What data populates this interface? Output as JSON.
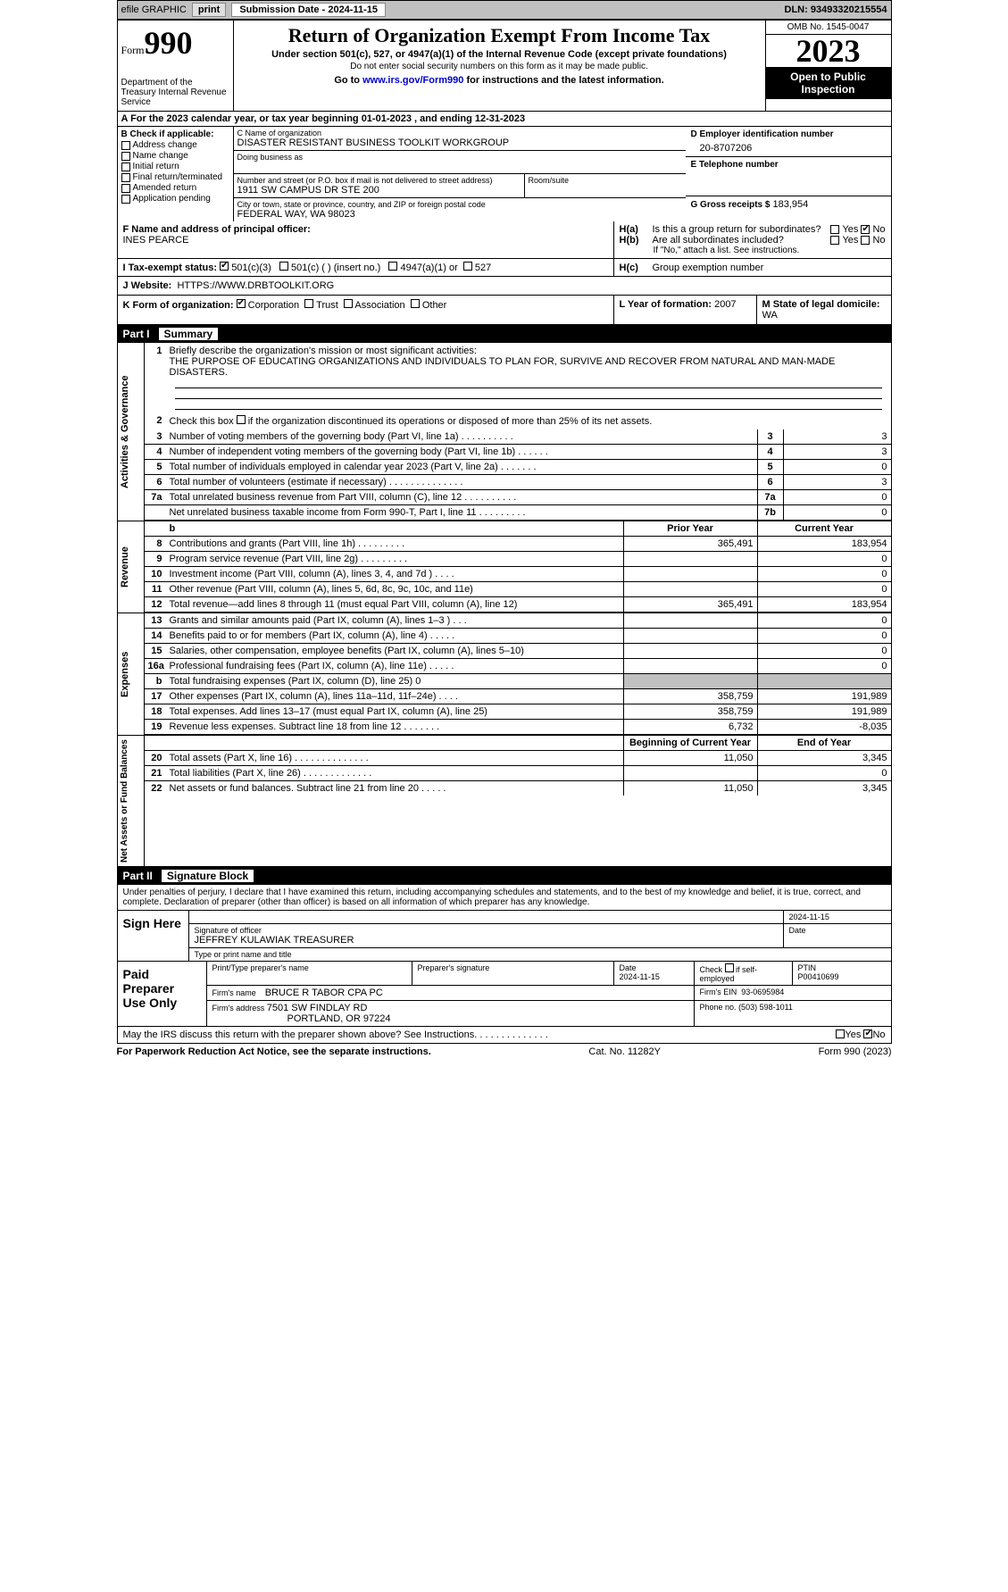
{
  "top_bar": {
    "efile": "efile GRAPHIC",
    "print": "print",
    "submission": "Submission Date - 2024-11-15",
    "dln": "DLN: 93493320215554"
  },
  "header": {
    "form_word": "Form",
    "form_number": "990",
    "dept": "Department of the Treasury\nInternal Revenue Service",
    "title": "Return of Organization Exempt From Income Tax",
    "subtitle": "Under section 501(c), 527, or 4947(a)(1) of the Internal Revenue Code (except private foundations)",
    "note": "Do not enter social security numbers on this form as it may be made public.",
    "goto_prefix": "Go to ",
    "goto_link": "www.irs.gov/Form990",
    "goto_suffix": " for instructions and the latest information.",
    "omb": "OMB No. 1545-0047",
    "year": "2023",
    "inspection": "Open to Public Inspection"
  },
  "section_a": "A   For the 2023 calendar year, or tax year beginning 01-01-2023   , and ending 12-31-2023",
  "col_b": {
    "label": "B Check if applicable:",
    "items": [
      "Address change",
      "Name change",
      "Initial return",
      "Final return/terminated",
      "Amended return",
      "Application pending"
    ]
  },
  "col_c": {
    "org_label": "C Name of organization",
    "org_name": "DISASTER RESISTANT BUSINESS TOOLKIT WORKGROUP",
    "dba_label": "Doing business as",
    "addr_label": "Number and street (or P.O. box if mail is not delivered to street address)",
    "addr": "1911 SW CAMPUS DR STE 200",
    "room_label": "Room/suite",
    "city_label": "City or town, state or province, country, and ZIP or foreign postal code",
    "city": "FEDERAL WAY, WA   98023"
  },
  "col_d": {
    "ein_label": "D Employer identification number",
    "ein": "20-8707206",
    "phone_label": "E Telephone number",
    "receipts_label": "G Gross receipts $",
    "receipts": "183,954"
  },
  "row_f": {
    "officer_label": "F  Name and address of principal officer:",
    "officer": "INES PEARCE",
    "ha_label": "H(a)",
    "ha_text": "Is this a group return for subordinates?",
    "hb_label": "H(b)",
    "hb_text": "Are all subordinates included?",
    "hb_note": "If \"No,\" attach a list. See instructions.",
    "yes": "Yes",
    "no": "No"
  },
  "row_i": {
    "label": "I    Tax-exempt status:",
    "opt1": "501(c)(3)",
    "opt2": "501(c) (  ) (insert no.)",
    "opt3": "4947(a)(1) or",
    "opt4": "527",
    "hc_label": "H(c)",
    "hc_text": "Group exemption number"
  },
  "row_j": {
    "label": "J    Website:",
    "value": "HTTPS://WWW.DRBTOOLKIT.ORG"
  },
  "row_k": {
    "k_label": "K Form of organization:",
    "k_opts": [
      "Corporation",
      "Trust",
      "Association",
      "Other"
    ],
    "l_label": "L Year of formation:",
    "l_value": "2007",
    "m_label": "M State of legal domicile:",
    "m_value": "WA"
  },
  "part1": {
    "num": "Part I",
    "title": "Summary"
  },
  "governance": {
    "tab": "Activities & Governance",
    "line1": {
      "num": "1",
      "text": "Briefly describe the organization's mission or most significant activities:",
      "mission": "THE PURPOSE OF EDUCATING ORGANIZATIONS AND INDIVIDUALS TO PLAN FOR, SURVIVE AND RECOVER FROM NATURAL AND MAN-MADE DISASTERS."
    },
    "line2": {
      "num": "2",
      "text": "Check this box        if the organization discontinued its operations or disposed of more than 25% of its net assets."
    },
    "rows": [
      {
        "num": "3",
        "text": "Number of voting members of the governing body (Part VI, line 1a)   .    .    .    .    .    .    .    .    .    .",
        "rn": "3",
        "val": "3"
      },
      {
        "num": "4",
        "text": "Number of independent voting members of the governing body (Part VI, line 1b)   .    .    .    .    .    .",
        "rn": "4",
        "val": "3"
      },
      {
        "num": "5",
        "text": "Total number of individuals employed in calendar year 2023 (Part V, line 2a)   .    .    .    .    .    .    .",
        "rn": "5",
        "val": "0"
      },
      {
        "num": "6",
        "text": "Total number of volunteers (estimate if necessary)    .    .    .    .    .    .    .    .    .    .    .    .    .    .",
        "rn": "6",
        "val": "3"
      },
      {
        "num": "7a",
        "text": "Total unrelated business revenue from Part VIII, column (C), line 12   .    .    .    .    .    .    .    .    .    .",
        "rn": "7a",
        "val": "0"
      },
      {
        "num": "",
        "text": "Net unrelated business taxable income from Form 990-T, Part I, line 11   .    .    .    .    .    .    .    .    .",
        "rn": "7b",
        "val": "0"
      }
    ]
  },
  "revenue": {
    "tab": "Revenue",
    "header": {
      "blank": "b",
      "py": "Prior Year",
      "cy": "Current Year"
    },
    "rows": [
      {
        "num": "8",
        "text": "Contributions and grants (Part VIII, line 1h)    .    .    .    .    .    .    .    .    .",
        "py": "365,491",
        "cy": "183,954"
      },
      {
        "num": "9",
        "text": "Program service revenue (Part VIII, line 2g)   .    .    .    .    .    .    .    .    .",
        "py": "",
        "cy": "0"
      },
      {
        "num": "10",
        "text": "Investment income (Part VIII, column (A), lines 3, 4, and 7d )    .    .    .    .",
        "py": "",
        "cy": "0"
      },
      {
        "num": "11",
        "text": "Other revenue (Part VIII, column (A), lines 5, 6d, 8c, 9c, 10c, and 11e)",
        "py": "",
        "cy": "0"
      },
      {
        "num": "12",
        "text": "Total revenue—add lines 8 through 11 (must equal Part VIII, column (A), line 12)",
        "py": "365,491",
        "cy": "183,954"
      }
    ]
  },
  "expenses": {
    "tab": "Expenses",
    "rows": [
      {
        "num": "13",
        "text": "Grants and similar amounts paid (Part IX, column (A), lines 1–3 )   .    .    .",
        "py": "",
        "cy": "0"
      },
      {
        "num": "14",
        "text": "Benefits paid to or for members (Part IX, column (A), line 4)   .    .    .    .    .",
        "py": "",
        "cy": "0"
      },
      {
        "num": "15",
        "text": "Salaries, other compensation, employee benefits (Part IX, column (A), lines 5–10)",
        "py": "",
        "cy": "0"
      },
      {
        "num": "16a",
        "text": "Professional fundraising fees (Part IX, column (A), line 11e)    .    .    .    .    .",
        "py": "",
        "cy": "0"
      },
      {
        "num": "b",
        "text": "Total fundraising expenses (Part IX, column (D), line 25) 0",
        "py": "shaded",
        "cy": "shaded"
      },
      {
        "num": "17",
        "text": "Other expenses (Part IX, column (A), lines 11a–11d, 11f–24e)   .    .    .    .",
        "py": "358,759",
        "cy": "191,989"
      },
      {
        "num": "18",
        "text": "Total expenses. Add lines 13–17 (must equal Part IX, column (A), line 25)",
        "py": "358,759",
        "cy": "191,989"
      },
      {
        "num": "19",
        "text": "Revenue less expenses. Subtract line 18 from line 12   .    .    .    .    .    .    .",
        "py": "6,732",
        "cy": "-8,035"
      }
    ]
  },
  "netassets": {
    "tab": "Net Assets or Fund Balances",
    "header": {
      "py": "Beginning of Current Year",
      "cy": "End of Year"
    },
    "rows": [
      {
        "num": "20",
        "text": "Total assets (Part X, line 16)   .    .    .    .    .    .    .    .    .    .    .    .    .    .",
        "py": "11,050",
        "cy": "3,345"
      },
      {
        "num": "21",
        "text": "Total liabilities (Part X, line 26)   .    .    .    .    .    .    .    .    .    .    .    .    .",
        "py": "",
        "cy": "0"
      },
      {
        "num": "22",
        "text": "Net assets or fund balances. Subtract line 21 from line 20   .    .    .    .    .",
        "py": "11,050",
        "cy": "3,345"
      }
    ]
  },
  "part2": {
    "num": "Part II",
    "title": "Signature Block"
  },
  "sig_intro": "Under penalties of perjury, I declare that I have examined this return, including accompanying schedules and statements, and to the best of my knowledge and belief, it is true, correct, and complete. Declaration of preparer (other than officer) is based on all information of which preparer has any knowledge.",
  "sign_here": {
    "label": "Sign Here",
    "sig_label": "Signature of officer",
    "officer": "JEFFREY KULAWIAK  TREASURER",
    "type_label": "Type or print name and title",
    "date_label": "Date",
    "date": "2024-11-15"
  },
  "paid": {
    "label": "Paid Preparer Use Only",
    "name_label": "Print/Type preparer's name",
    "sig_label": "Preparer's signature",
    "date_label": "Date",
    "date": "2024-11-15",
    "check_label": "Check         if self-employed",
    "ptin_label": "PTIN",
    "ptin": "P00410699",
    "firm_label": "Firm's name",
    "firm_name": "BRUCE R TABOR CPA PC",
    "ein_label": "Firm's EIN",
    "ein": "93-0695984",
    "addr_label": "Firm's address",
    "addr1": "7501 SW FINDLAY RD",
    "addr2": "PORTLAND, OR   97224",
    "phone_label": "Phone no.",
    "phone": "(503) 598-1011"
  },
  "discuss": {
    "text": "May the IRS discuss this return with the preparer shown above? See Instructions.    .    .    .    .    .    .    .    .    .    .    .    .    .",
    "yes": "Yes",
    "no": "No"
  },
  "footer": {
    "left": "For Paperwork Reduction Act Notice, see the separate instructions.",
    "center": "Cat. No. 11282Y",
    "right": "Form 990 (2023)"
  }
}
